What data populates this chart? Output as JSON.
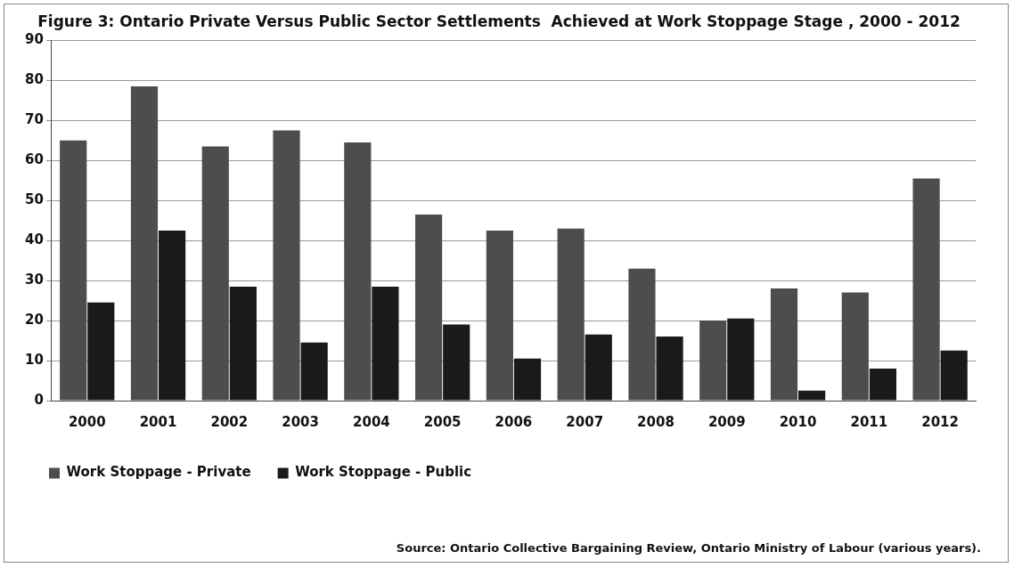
{
  "chart_data": {
    "type": "bar",
    "title": "Figure 3: Ontario Private Versus Public Sector Settlements  Achieved at Work Stoppage Stage , 2000 - 2012",
    "categories": [
      "2000",
      "2001",
      "2002",
      "2003",
      "2004",
      "2005",
      "2006",
      "2007",
      "2008",
      "2009",
      "2010",
      "2011",
      "2012"
    ],
    "series": [
      {
        "name": "Work Stoppage - Private",
        "color": "#4d4d4d",
        "values": [
          65,
          78.5,
          63.5,
          67.5,
          64.5,
          46.5,
          42.5,
          43,
          33,
          20,
          28,
          27,
          55.5
        ]
      },
      {
        "name": "Work Stoppage - Public",
        "color": "#1a1a1a",
        "values": [
          24.5,
          42.5,
          28.5,
          14.5,
          28.5,
          19,
          10.5,
          16.5,
          16,
          20.5,
          2.5,
          8,
          12.5
        ]
      }
    ],
    "ylim": [
      0,
      90
    ],
    "yticks": [
      0,
      10,
      20,
      30,
      40,
      50,
      60,
      70,
      80,
      90
    ],
    "grid": "y",
    "legend": "bottom left",
    "annotations": [
      "Source: Ontario Collective Bargaining Review,  Ontario Ministry of Labour (various years)."
    ]
  }
}
